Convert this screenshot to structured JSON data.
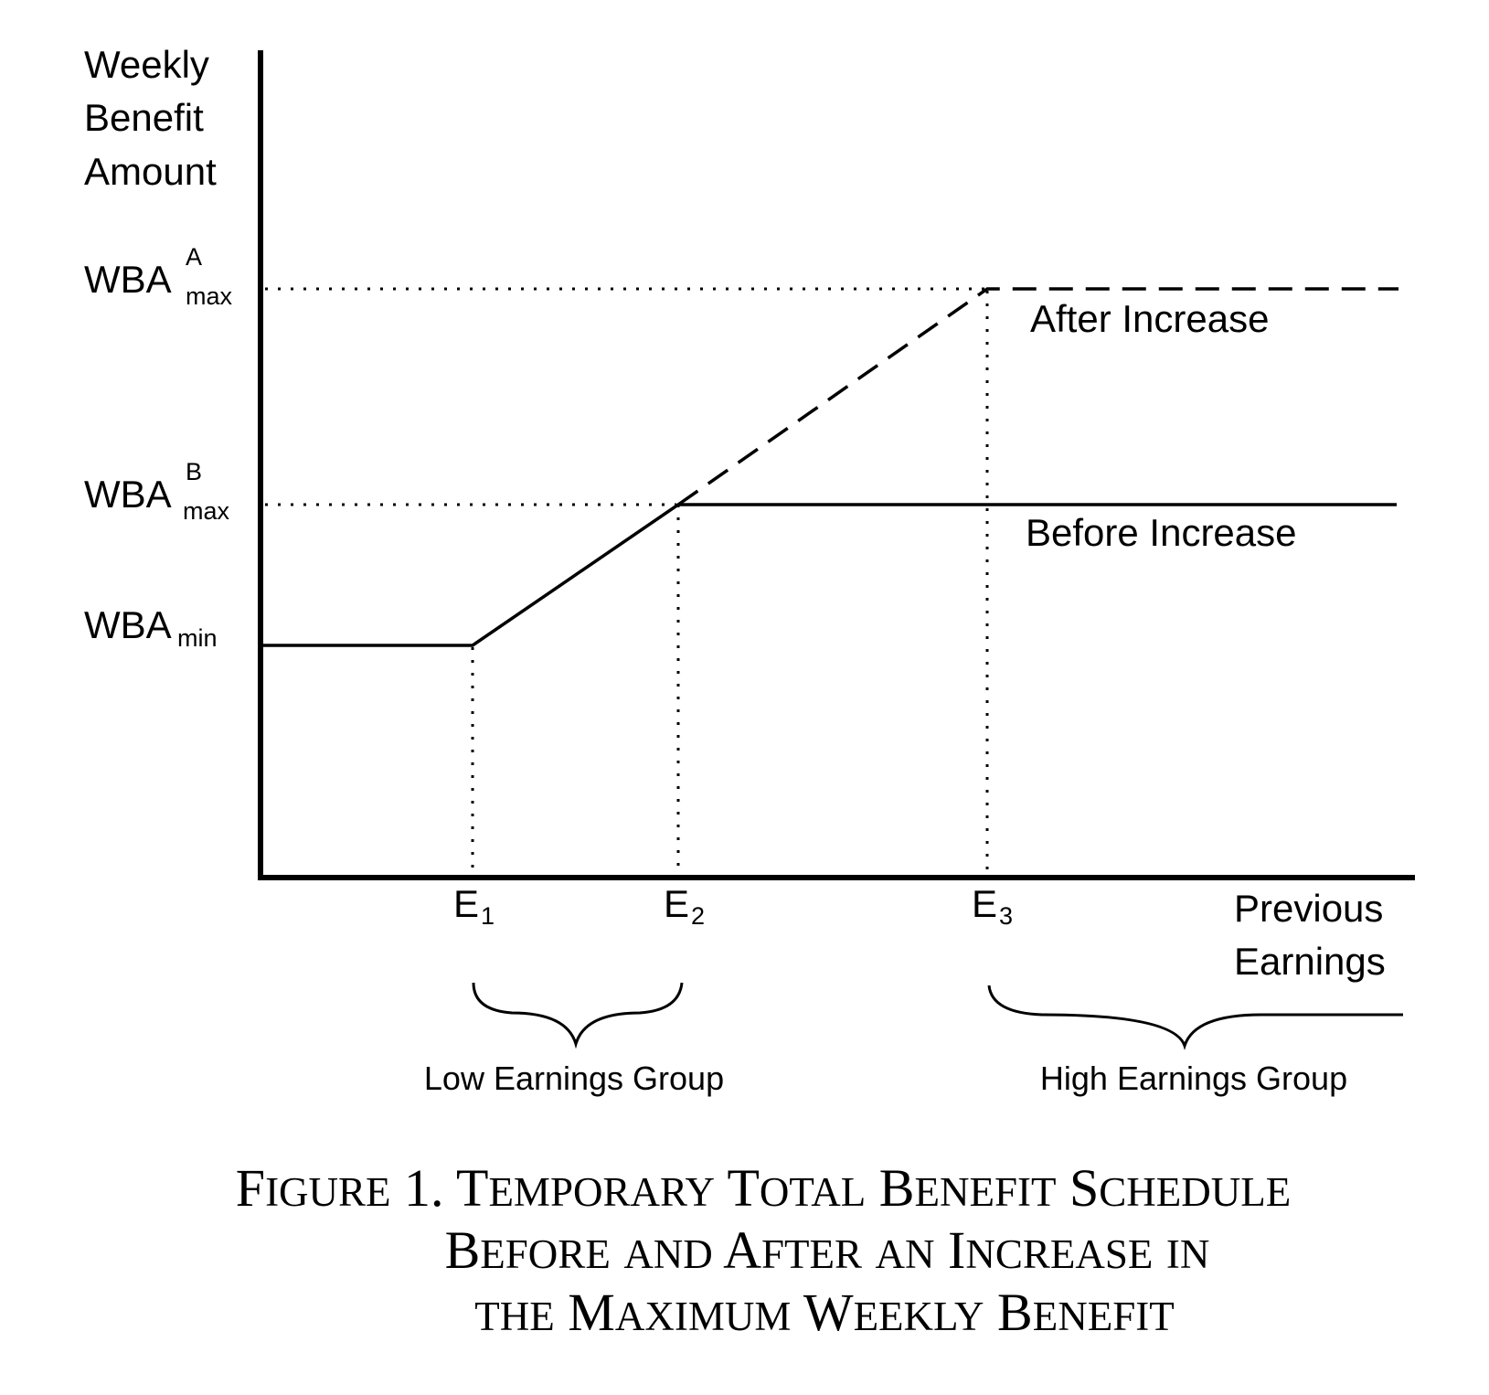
{
  "diagram": {
    "axis_labels": {
      "y_lines": [
        "Weekly",
        "Benefit",
        "Amount"
      ],
      "x_lines": [
        "Previous",
        "Earnings"
      ]
    },
    "y_levels": {
      "max_after": {
        "base": "WBA",
        "sup": "A",
        "sub": "max"
      },
      "max_before": {
        "base": "WBA",
        "sup": "B",
        "sub": "max"
      },
      "min": {
        "base": "WBA",
        "sub": "min"
      }
    },
    "x_points": [
      {
        "base": "E",
        "sub": "1"
      },
      {
        "base": "E",
        "sub": "2"
      },
      {
        "base": "E",
        "sub": "3"
      }
    ],
    "curve_labels": {
      "after": "After Increase",
      "before": "Before Increase"
    },
    "groups": {
      "low": "Low Earnings Group",
      "high": "High Earnings Group"
    }
  },
  "caption": {
    "line1": [
      {
        "cap": "F",
        "rest": "IGURE"
      },
      {
        "cap": "1.",
        "rest": ""
      },
      {
        "cap": "T",
        "rest": "EMPORARY"
      },
      {
        "cap": "T",
        "rest": "OTAL"
      },
      {
        "cap": "B",
        "rest": "ENEFIT"
      },
      {
        "cap": "S",
        "rest": "CHEDULE"
      }
    ],
    "line2": [
      {
        "cap": "B",
        "rest": "EFORE"
      },
      {
        "cap": "",
        "rest": "AND"
      },
      {
        "cap": "A",
        "rest": "FTER"
      },
      {
        "cap": "",
        "rest": "AN"
      },
      {
        "cap": "I",
        "rest": "NCREASE"
      },
      {
        "cap": "",
        "rest": "IN"
      }
    ],
    "line3": [
      {
        "cap": "",
        "rest": "THE"
      },
      {
        "cap": "M",
        "rest": "AXIMUM"
      },
      {
        "cap": "W",
        "rest": "EEKLY"
      },
      {
        "cap": "B",
        "rest": "ENEFIT"
      }
    ]
  }
}
